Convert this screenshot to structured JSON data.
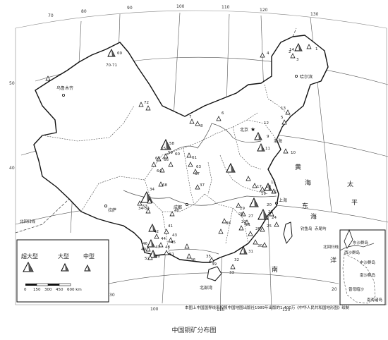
{
  "caption": "中国铜矿分布图",
  "source_note": "本图上中国国界线系按照中国地图出版社1989年出版的1:400万《中华人民共和国地形图》绘制",
  "legend": {
    "super_large": "超大型",
    "large": "大型",
    "medium": "中型",
    "scale_ticks": [
      "0",
      "150",
      "300",
      "450",
      "600 km"
    ]
  },
  "longitude_labels_top": [
    "70",
    "80",
    "90",
    "100",
    "110",
    "120",
    "130"
  ],
  "longitude_labels_bottom": [
    "100",
    "110",
    "120"
  ],
  "latitude_labels": [
    "50",
    "40",
    "30",
    "20"
  ],
  "places": [
    {
      "name": "乌鲁木齐",
      "icon": "city-dot-icon"
    },
    {
      "name": "北京",
      "icon": "capital-star-icon"
    },
    {
      "name": "成都",
      "icon": "city-dot-icon"
    },
    {
      "name": "上海",
      "icon": "city-dot-icon"
    },
    {
      "name": "拉萨",
      "icon": "city-dot-icon"
    },
    {
      "name": "哈尔滨",
      "icon": "city-dot-icon"
    },
    {
      "name": "北部湾",
      "icon": "none"
    }
  ],
  "seas": [
    "渤海",
    "黄",
    "海",
    "东",
    "海",
    "太",
    "平",
    "洋",
    "南"
  ],
  "island_labels": [
    "钓鱼岛",
    "赤尾屿",
    "北回归线",
    "北回归线",
    "东沙群岛",
    "中沙群岛",
    "西沙群岛",
    "南沙群岛",
    "曾母暗沙",
    "南海诸岛"
  ],
  "deposit_numbers": [
    "1",
    "2",
    "3",
    "4",
    "5",
    "6",
    "7",
    "8",
    "9",
    "10",
    "11",
    "12",
    "13",
    "14",
    "15",
    "16",
    "17",
    "18",
    "19",
    "20",
    "21",
    "22",
    "23",
    "24",
    "25",
    "26",
    "27",
    "28",
    "29",
    "30",
    "31",
    "32",
    "33",
    "34",
    "35",
    "36",
    "37",
    "38",
    "39",
    "40",
    "41",
    "42",
    "43",
    "44",
    "45",
    "46",
    "47",
    "48",
    "49",
    "50",
    "51",
    "52",
    "53",
    "54",
    "55",
    "56",
    "57",
    "58",
    "59",
    "60",
    "61",
    "62",
    "63",
    "64",
    "65",
    "66",
    "67",
    "68",
    "69",
    "70-71",
    "72",
    "34-54"
  ]
}
